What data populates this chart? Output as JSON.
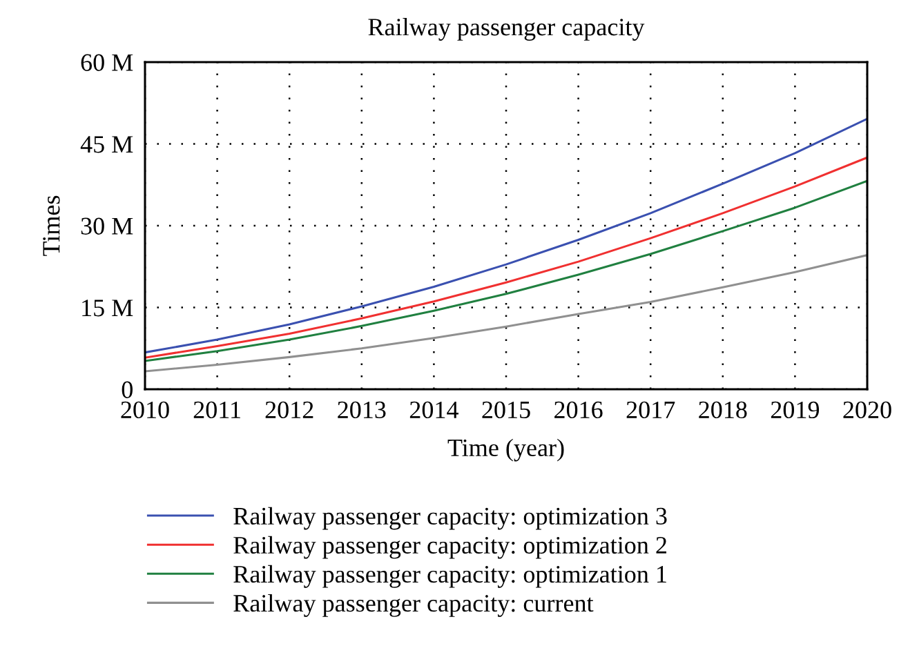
{
  "chart_data": {
    "type": "line",
    "title": "Railway passenger capacity",
    "xlabel": "Time (year)",
    "ylabel": "Times",
    "x": [
      2010,
      2011,
      2012,
      2013,
      2014,
      2015,
      2016,
      2017,
      2018,
      2019,
      2020
    ],
    "series": [
      {
        "name": "Railway passenger capacity: optimization 3",
        "color": "#3a50b0",
        "values": [
          6.75,
          9.1,
          11.9,
          15.2,
          18.8,
          22.9,
          27.4,
          32.3,
          37.7,
          43.3,
          49.6
        ]
      },
      {
        "name": "Railway passenger capacity: optimization 2",
        "color": "#f03030",
        "values": [
          5.8,
          7.9,
          10.2,
          13.0,
          16.1,
          19.6,
          23.4,
          27.7,
          32.3,
          37.2,
          42.5
        ]
      },
      {
        "name": "Railway passenger capacity: optimization 1",
        "color": "#208040",
        "values": [
          5.2,
          7.0,
          9.1,
          11.6,
          14.4,
          17.5,
          21.0,
          24.8,
          29.0,
          33.3,
          38.2
        ]
      },
      {
        "name": "Railway passenger capacity: current",
        "color": "#909090",
        "values": [
          3.3,
          4.5,
          5.9,
          7.5,
          9.4,
          11.5,
          13.8,
          16.0,
          18.7,
          21.5,
          24.6
        ]
      }
    ],
    "xlim": [
      2010,
      2020
    ],
    "xticks": [
      2010,
      2011,
      2012,
      2013,
      2014,
      2015,
      2016,
      2017,
      2018,
      2019,
      2020
    ],
    "ylim": [
      0,
      60
    ],
    "yticks": [
      0,
      {
        "value": 15,
        "label": "15 M"
      },
      {
        "value": 30,
        "label": "30 M"
      },
      {
        "value": 45,
        "label": "45 M"
      },
      {
        "value": 60,
        "label": "60 M"
      }
    ],
    "grid": true,
    "legend": "bottom",
    "marker": "none",
    "line_style": "solid"
  }
}
